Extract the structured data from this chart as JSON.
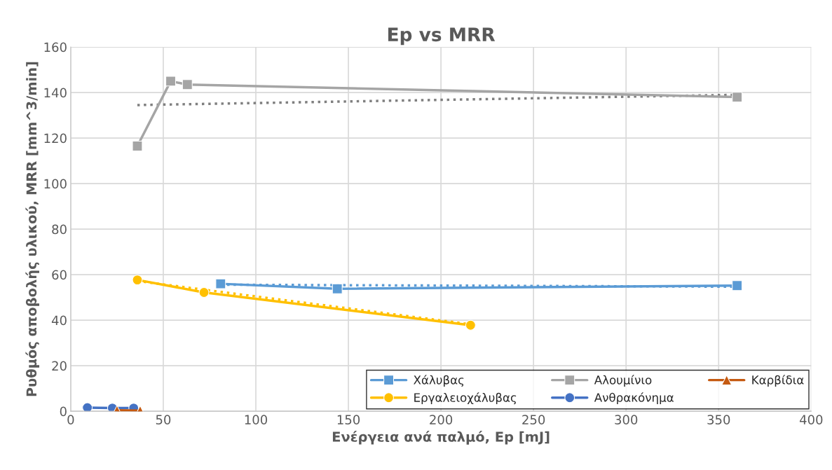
{
  "chart_data": {
    "type": "line",
    "title": "Ep vs MRR",
    "xlabel": "Ενέργεια ανά παλμό, Ep [mJ]",
    "ylabel": "Ρυθμός αποβολής υλικού, MRR [mm^3/min]",
    "xlim": [
      0,
      400
    ],
    "xticks": [
      0,
      50,
      100,
      150,
      200,
      250,
      300,
      350,
      400
    ],
    "ylim": [
      0,
      160
    ],
    "yticks": [
      0,
      20,
      40,
      60,
      80,
      100,
      120,
      140,
      160
    ],
    "grid": true,
    "legend": "bottom right",
    "series": [
      {
        "x": [
          36,
          360
        ],
        "values": [
          134.5,
          139
        ],
        "color": "#7f7f7f",
        "line_style": "dotted",
        "marker": "none"
      },
      {
        "x": [
          81,
          360
        ],
        "values": [
          55.6,
          54.7
        ],
        "color": "#5b9bd5",
        "line_style": "dotted",
        "marker": "none"
      },
      {
        "x": [
          36,
          216
        ],
        "values": [
          57.2,
          38.2
        ],
        "color": "#ffc000",
        "line_style": "dotted",
        "marker": "none"
      },
      {
        "name": "Χάλυβας",
        "x": [
          81,
          144,
          360
        ],
        "values": [
          56,
          53.8,
          55.2
        ],
        "color": "#5b9bd5",
        "marker": "square"
      },
      {
        "name": "Αλουμίνιο",
        "x": [
          36,
          54,
          63,
          360
        ],
        "values": [
          116.5,
          145,
          143.5,
          138
        ],
        "color": "#a5a5a5",
        "marker": "square"
      },
      {
        "name": "Καρβίδια",
        "x": [
          25,
          37.5
        ],
        "values": [
          0.4,
          0.3
        ],
        "color": "#c55a11",
        "marker": "triangle"
      },
      {
        "name": "Εργαλειοχάλυβας",
        "x": [
          36,
          72,
          216
        ],
        "values": [
          57.7,
          52.2,
          37.8
        ],
        "color": "#ffc000",
        "marker": "circle"
      },
      {
        "name": "Ανθρακόνημα",
        "x": [
          9,
          22.5,
          34
        ],
        "values": [
          1.6,
          1.4,
          1.4
        ],
        "color": "#4472c4",
        "marker": "circle"
      }
    ]
  }
}
